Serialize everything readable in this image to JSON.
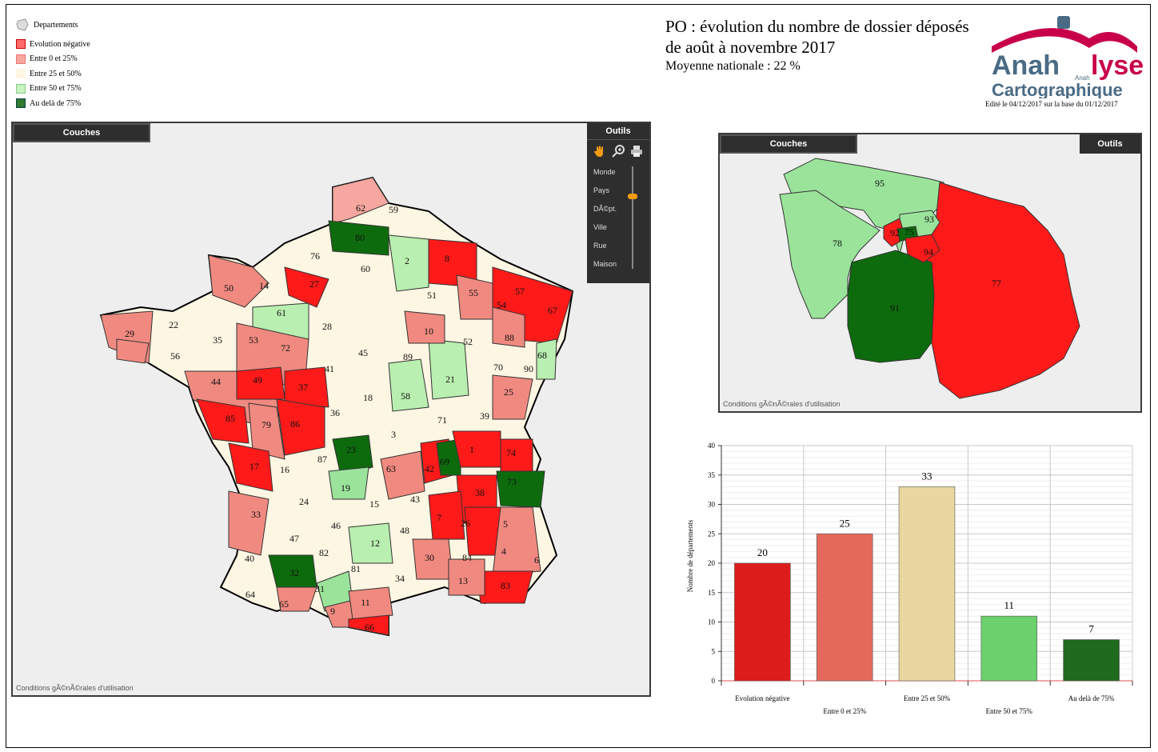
{
  "legend": {
    "layer_label": "Departements",
    "items": [
      {
        "label": "Evolution négative",
        "color": "#ff6b6b"
      },
      {
        "label": "Entre 0 et 25%",
        "color": "#f6a7a0"
      },
      {
        "label": "Entre 25 et 50%",
        "color": "#fdf6e2"
      },
      {
        "label": "Entre 50 et 75%",
        "color": "#c8f2c0"
      },
      {
        "label": "Au delà de 75%",
        "color": "#2e7a2e"
      }
    ]
  },
  "title": {
    "main": "PO : évolution du nombre de dossier déposés de août à novembre 2017",
    "subtitle": "Moyenne nationale : 22 %"
  },
  "logo": {
    "brand_line1a": "Anah",
    "brand_line1b": "lyse",
    "brand_small": "Anah",
    "brand_line2": "Cartographique",
    "edit_note": "Edité le 04/12/2017 sur la base du 01/12/2017"
  },
  "main_map": {
    "tab_couches": "Couches",
    "tab_outils": "Outils",
    "zoom_levels": [
      "Monde",
      "Pays",
      "DÃ©pt.",
      "Ville",
      "Rue",
      "Maison"
    ],
    "conditions": "Conditions gÃ©nÃ©rales d'utilisation",
    "icons": [
      "hand-icon",
      "zoom-in-icon",
      "print-icon"
    ],
    "departments": [
      "62",
      "59",
      "80",
      "76",
      "60",
      "2",
      "8",
      "50",
      "14",
      "27",
      "61",
      "51",
      "55",
      "57",
      "54",
      "67",
      "29",
      "22",
      "35",
      "53",
      "72",
      "28",
      "45",
      "10",
      "52",
      "88",
      "68",
      "56",
      "41",
      "89",
      "21",
      "70",
      "90",
      "44",
      "49",
      "37",
      "18",
      "58",
      "25",
      "85",
      "79",
      "86",
      "36",
      "71",
      "39",
      "3",
      "23",
      "87",
      "42",
      "69",
      "1",
      "74",
      "17",
      "16",
      "63",
      "19",
      "73",
      "38",
      "24",
      "15",
      "43",
      "33",
      "46",
      "48",
      "26",
      "7",
      "47",
      "12",
      "5",
      "4",
      "40",
      "82",
      "81",
      "30",
      "84",
      "32",
      "34",
      "6",
      "64",
      "31",
      "13",
      "83",
      "65",
      "9",
      "11",
      "66"
    ]
  },
  "idf_map": {
    "tab_couches": "Couches",
    "tab_outils": "Outils",
    "conditions": "Conditions gÃ©nÃ©rales d'utilisation",
    "departments": [
      "95",
      "93",
      "92",
      "75",
      "94",
      "78",
      "91",
      "77"
    ]
  },
  "chart_data": {
    "type": "bar",
    "categories": [
      "Evolution négative",
      "Entre 0 et 25%",
      "Entre 25 et 50%",
      "Entre 50 et 75%",
      "Au delà de 75%"
    ],
    "values": [
      20,
      25,
      33,
      11,
      7
    ],
    "colors": [
      "#dd1c1c",
      "#e66a5c",
      "#e8d7a0",
      "#6cd06c",
      "#1e6a1e"
    ],
    "ylabel": "Nombre de départements",
    "ylim": [
      0,
      40
    ],
    "yticks": [
      0,
      5,
      10,
      15,
      20,
      25,
      30,
      35,
      40
    ],
    "grid": true
  }
}
